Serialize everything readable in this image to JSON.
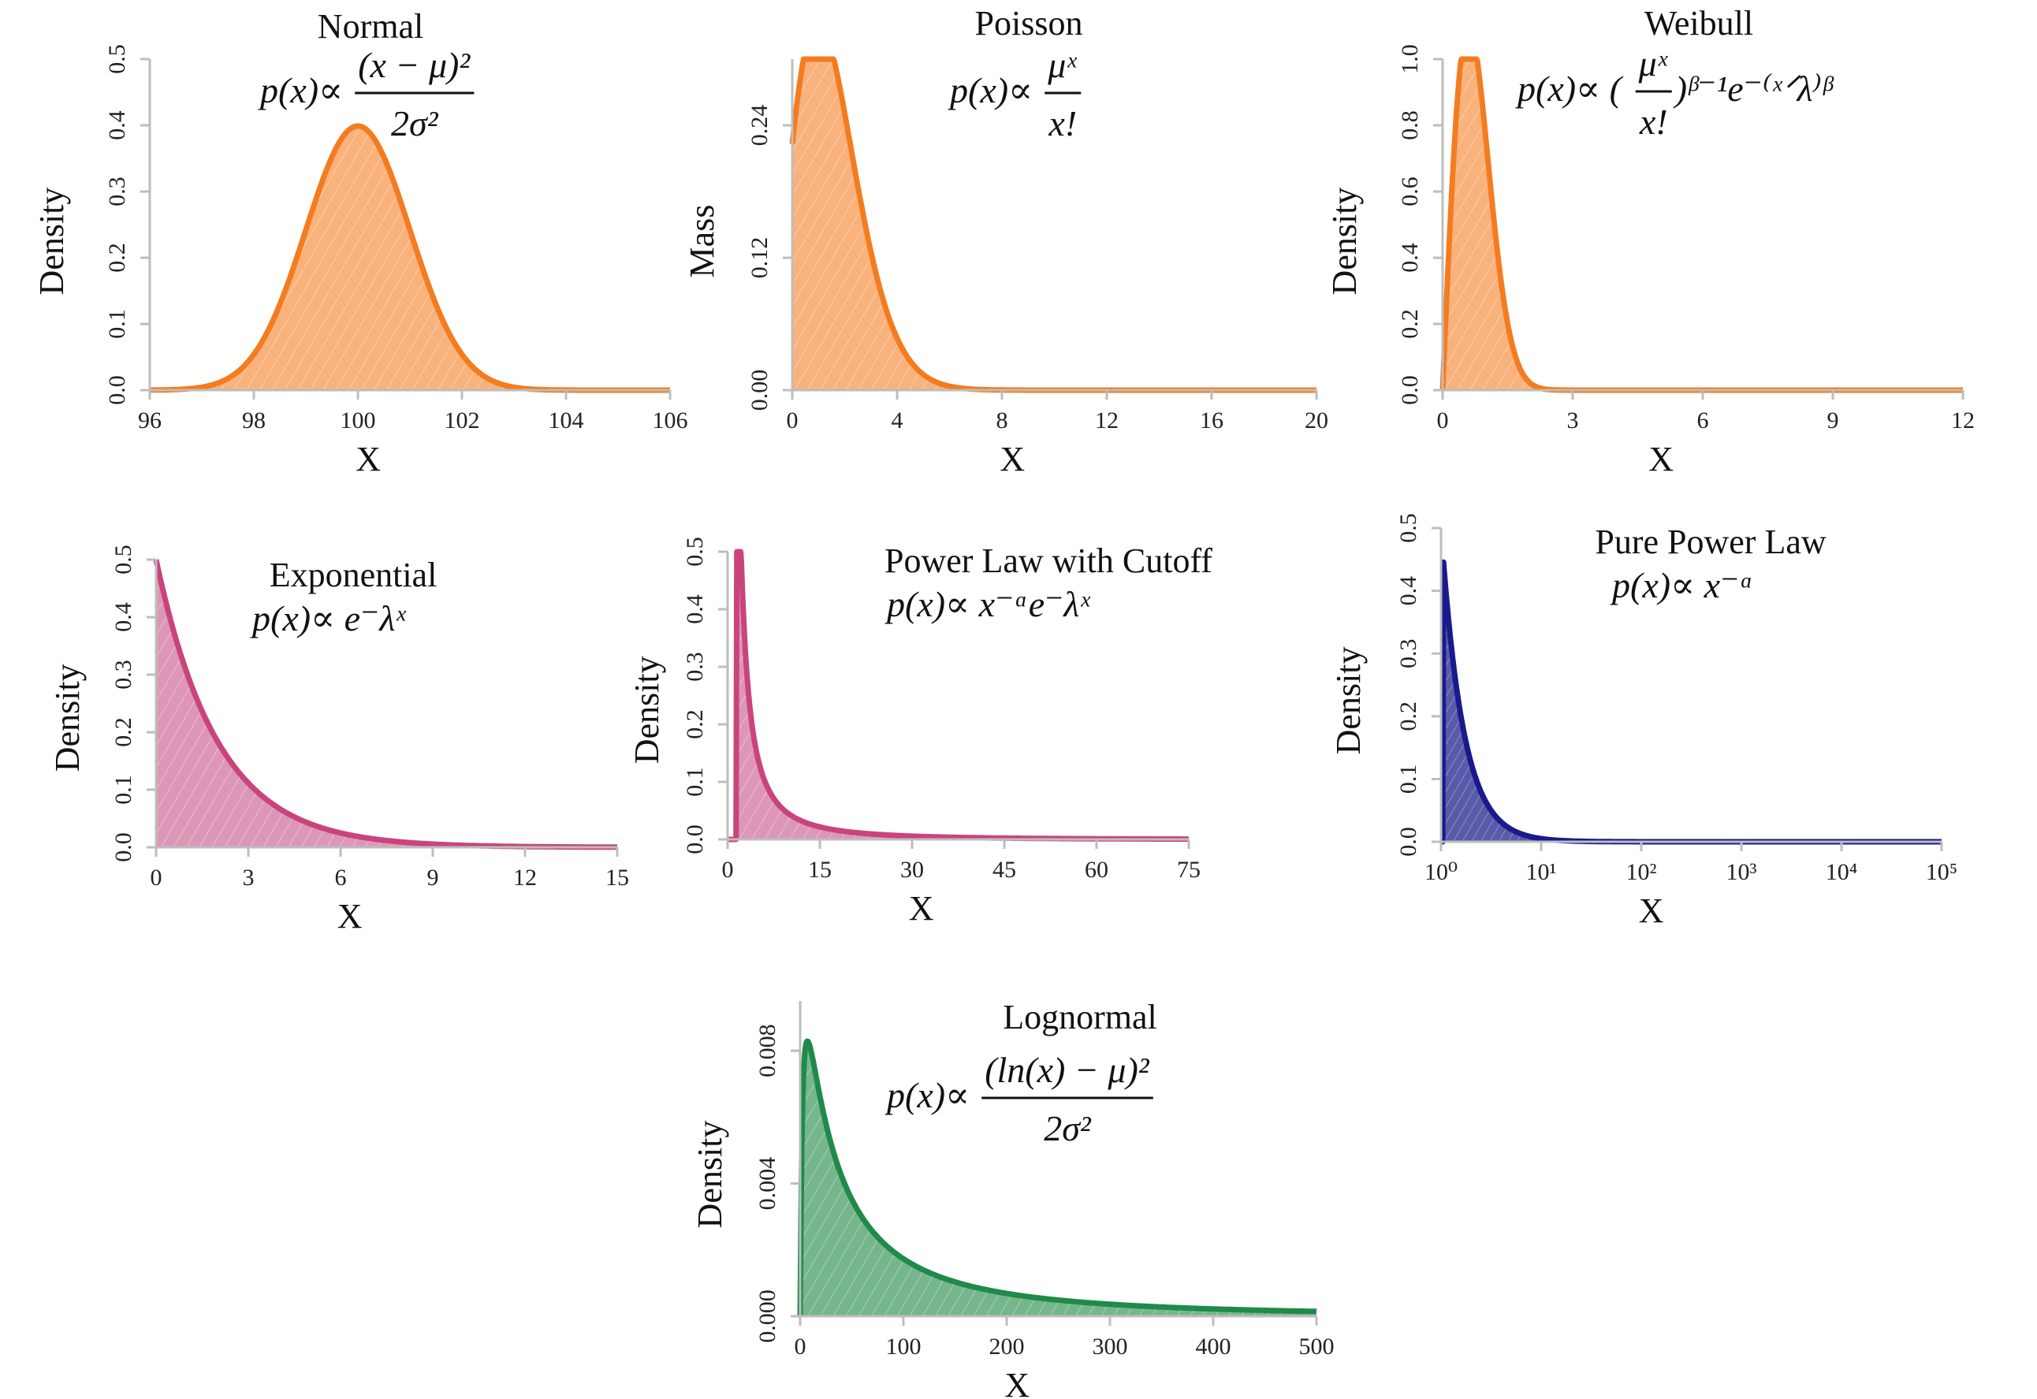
{
  "chart_data": [
    {
      "type": "area",
      "id": "normal",
      "title": "Normal",
      "formula": {
        "lhs": "p(x)∝",
        "numerator": "(x − μ)²",
        "denominator": "2σ²"
      },
      "xlabel": "X",
      "ylabel": "Density",
      "xlim": [
        96,
        106
      ],
      "ylim": [
        0,
        0.5
      ],
      "xticks": [
        96,
        98,
        100,
        102,
        104,
        106
      ],
      "xtick_labels": [
        "96",
        "98",
        "100",
        "102",
        "104",
        "106"
      ],
      "yticks": [
        0,
        0.1,
        0.2,
        0.3,
        0.4,
        0.5
      ],
      "ytick_labels": [
        "0.0",
        "0.1",
        "0.2",
        "0.3",
        "0.4",
        "0.5"
      ],
      "curve": {
        "family": "normal",
        "mu": 100,
        "sigma": 1
      },
      "color": "#f47c20",
      "fill": "#f9b27c",
      "grid": false
    },
    {
      "type": "area",
      "id": "poisson",
      "title": "Poisson",
      "formula": {
        "lhs": "p(x)∝",
        "numerator": "μˣ",
        "denominator": "x!"
      },
      "xlabel": "X",
      "ylabel": "Mass",
      "xlim": [
        0,
        20
      ],
      "ylim": [
        0,
        0.3
      ],
      "xticks": [
        0,
        4,
        8,
        12,
        16,
        20
      ],
      "xtick_labels": [
        "0",
        "4",
        "8",
        "12",
        "16",
        "20"
      ],
      "yticks": [
        0,
        0.12,
        0.24
      ],
      "ytick_labels": [
        "0.00",
        "0.12",
        "0.24"
      ],
      "curve": {
        "family": "poisson",
        "lambda": 1.5
      },
      "color": "#f47c20",
      "fill": "#f9b27c",
      "grid": false
    },
    {
      "type": "area",
      "id": "weibull",
      "title": "Weibull",
      "formula": {
        "lhs": "p(x)∝ (",
        "numerator": "μˣ",
        "denominator": "x!",
        "rhs": ")ᵝ⁻¹e⁻⁽ˣᐟλ⁾ᵝ"
      },
      "xlabel": "X",
      "ylabel": "Density",
      "xlim": [
        0,
        12
      ],
      "ylim": [
        0,
        1.0
      ],
      "xticks": [
        0,
        3,
        6,
        9,
        12
      ],
      "xtick_labels": [
        "0",
        "3",
        "6",
        "9",
        "12"
      ],
      "yticks": [
        0,
        0.2,
        0.4,
        0.6,
        0.8,
        1.0
      ],
      "ytick_labels": [
        "0.0",
        "0.2",
        "0.4",
        "0.6",
        "0.8",
        "1.0"
      ],
      "curve": {
        "family": "weibull",
        "k": 2,
        "lambda": 0.85,
        "scale": 1.09
      },
      "color": "#f47c20",
      "fill": "#f9b27c",
      "grid": false
    },
    {
      "type": "area",
      "id": "exponential",
      "title": "Exponential",
      "formula": {
        "lhs": "p(x)∝ e⁻λˣ"
      },
      "xlabel": "X",
      "ylabel": "Density",
      "xlim": [
        0,
        15
      ],
      "ylim": [
        0,
        0.5
      ],
      "xticks": [
        0,
        3,
        6,
        9,
        12,
        15
      ],
      "xtick_labels": [
        "0",
        "3",
        "6",
        "9",
        "12",
        "15"
      ],
      "yticks": [
        0,
        0.1,
        0.2,
        0.3,
        0.4,
        0.5
      ],
      "ytick_labels": [
        "0.0",
        "0.1",
        "0.2",
        "0.3",
        "0.4",
        "0.5"
      ],
      "curve": {
        "family": "exponential",
        "lambda": 0.5
      },
      "color": "#c9447d",
      "fill": "#dd97b6",
      "grid": false
    },
    {
      "type": "area",
      "id": "power-law-cutoff",
      "title": "Power Law with Cutoff",
      "formula": {
        "lhs": "p(x)∝ x⁻ᵅe⁻λˣ"
      },
      "xlabel": "X",
      "ylabel": "Density",
      "xlim": [
        0,
        75
      ],
      "ylim": [
        0,
        0.5
      ],
      "xticks": [
        0,
        15,
        30,
        45,
        60,
        75
      ],
      "xtick_labels": [
        "0",
        "15",
        "30",
        "45",
        "60",
        "75"
      ],
      "yticks": [
        0,
        0.1,
        0.2,
        0.3,
        0.4,
        0.5
      ],
      "ytick_labels": [
        "0.0",
        "0.1",
        "0.2",
        "0.3",
        "0.4",
        "0.5"
      ],
      "curve": {
        "family": "powerlaw_cutoff",
        "alpha": 1.5,
        "lambda": 0.02,
        "scale": 1.7,
        "xstart": 1.5
      },
      "color": "#c9447d",
      "fill": "#dd97b6",
      "grid": false
    },
    {
      "type": "area",
      "id": "pure-power-law",
      "title": "Pure Power Law",
      "formula": {
        "lhs": "p(x)∝ x⁻ᵅ"
      },
      "xlabel": "X",
      "ylabel": "Density",
      "xscale": "log",
      "xlim": [
        1,
        100000
      ],
      "ylim": [
        0,
        0.5
      ],
      "xticks": [
        1,
        10,
        100,
        1000,
        10000,
        100000
      ],
      "xtick_labels": [
        "10⁰",
        "10¹",
        "10²",
        "10³",
        "10⁴",
        "10⁵"
      ],
      "yticks": [
        0,
        0.1,
        0.2,
        0.3,
        0.4,
        0.5
      ],
      "ytick_labels": [
        "0.0",
        "0.1",
        "0.2",
        "0.3",
        "0.4",
        "0.5"
      ],
      "curve": {
        "family": "powerlaw",
        "alpha": 2.0,
        "scale": 0.5,
        "xstart": 1.05
      },
      "color": "#1a1a8c",
      "fill": "#5a5aaa",
      "grid": false
    },
    {
      "type": "area",
      "id": "lognormal",
      "title": "Lognormal",
      "formula": {
        "lhs": "p(x)∝",
        "numerator": "(ln(x) − μ)²",
        "denominator": "2σ²"
      },
      "xlabel": "X",
      "ylabel": "Density",
      "xlim": [
        0,
        500
      ],
      "ylim": [
        0,
        0.0095
      ],
      "xticks": [
        0,
        100,
        200,
        300,
        400,
        500
      ],
      "xtick_labels": [
        "0",
        "100",
        "200",
        "300",
        "400",
        "500"
      ],
      "yticks": [
        0,
        0.004,
        0.008
      ],
      "ytick_labels": [
        "0.000",
        "0.004",
        "0.008"
      ],
      "curve": {
        "family": "lognormal",
        "mu": 4.2,
        "sigma": 1.5,
        "scale": 0.675,
        "xstart": 0.5
      },
      "color": "#1f8a4a",
      "fill": "#76b68c",
      "grid": false
    }
  ]
}
